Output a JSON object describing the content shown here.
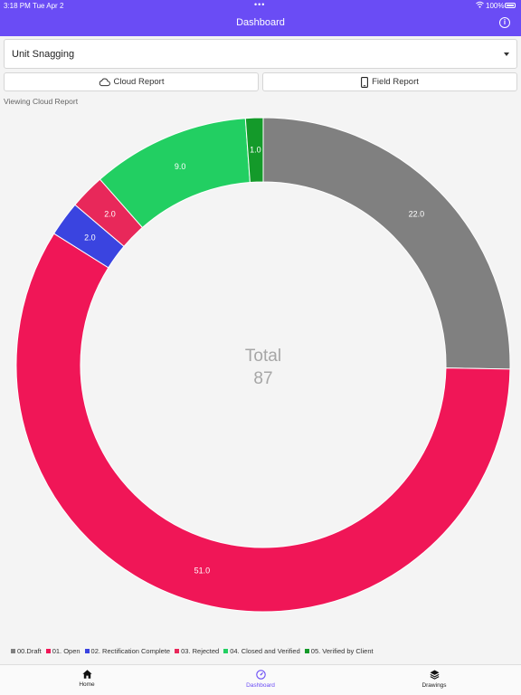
{
  "status_bar": {
    "time": "3:18 PM",
    "date": "Tue Apr 2",
    "battery": "100%"
  },
  "header": {
    "title": "Dashboard",
    "info_icon": "info-icon"
  },
  "dropdown": {
    "selected": "Unit Snagging"
  },
  "buttons": {
    "cloud_report": {
      "label": "Cloud Report",
      "icon": "cloud-icon"
    },
    "field_report": {
      "label": "Field Report",
      "icon": "tablet-icon"
    }
  },
  "viewing_label": "Viewing Cloud Report",
  "chart_data": {
    "type": "pie",
    "center_label": "Total",
    "center_value": "87",
    "slices": [
      {
        "name": "00.Draft",
        "value": 22.0,
        "label": "22.0",
        "color": "#808080"
      },
      {
        "name": "01. Open",
        "value": 51.0,
        "label": "51.0",
        "color": "#f01657"
      },
      {
        "name": "02. Rectification Complete",
        "value": 2.0,
        "label": "2.0",
        "color": "#3a44e0"
      },
      {
        "name": "03. Rejected",
        "value": 2.0,
        "label": "2.0",
        "color": "#e8285a"
      },
      {
        "name": "04. Closed and Verified",
        "value": 9.0,
        "label": "9.0",
        "color": "#22cf62"
      },
      {
        "name": "05. Verified by Client",
        "value": 1.0,
        "label": "1.0",
        "color": "#149a2a"
      }
    ],
    "legend_position": "bottom-left"
  },
  "tabs": [
    {
      "label": "Home",
      "icon": "home-icon",
      "active": false
    },
    {
      "label": "Dashboard",
      "icon": "dashboard-icon",
      "active": true
    },
    {
      "label": "Drawings",
      "icon": "layers-icon",
      "active": false
    }
  ]
}
